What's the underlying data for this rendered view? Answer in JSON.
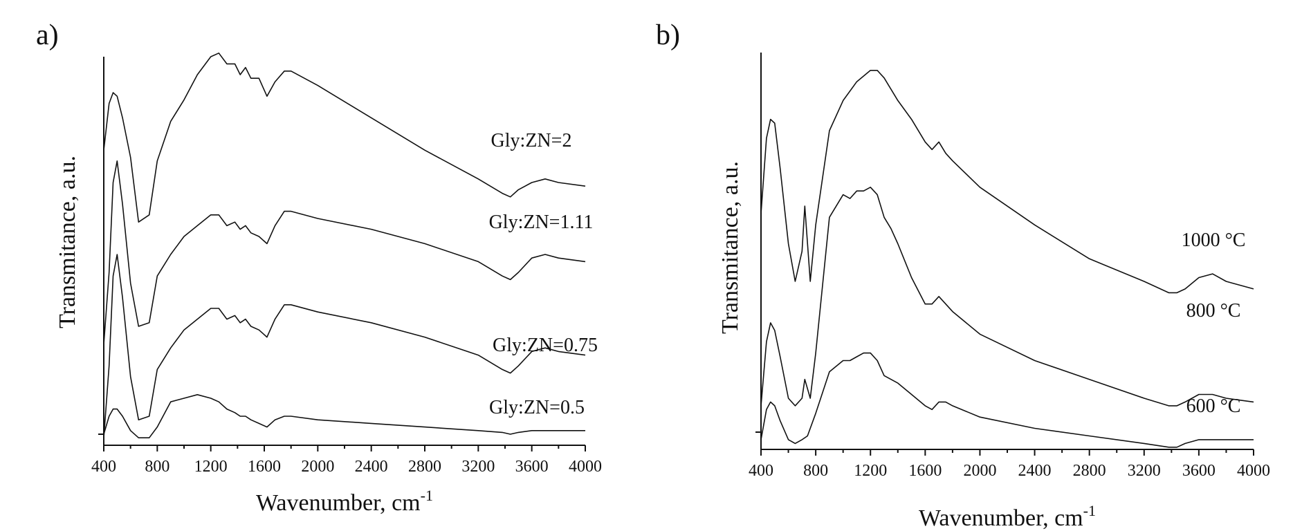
{
  "chart_data": [
    {
      "type": "line",
      "panel": "a)",
      "xlabel": "Wavenumber, cm",
      "xlabel_sup": "-1",
      "ylabel": "Transmitance, a.u.",
      "xlim": [
        400,
        4000
      ],
      "xticks": [
        400,
        800,
        1200,
        1600,
        2000,
        2400,
        2800,
        3200,
        3600,
        4000
      ],
      "y_ticks_labeled": false,
      "series": [
        {
          "name": "Gly:ZN=2",
          "offset": 0.74,
          "x": [
            400,
            440,
            470,
            500,
            540,
            600,
            660,
            740,
            800,
            900,
            1000,
            1100,
            1200,
            1260,
            1320,
            1380,
            1420,
            1460,
            1500,
            1560,
            1620,
            1680,
            1750,
            1800,
            2000,
            2400,
            2800,
            3200,
            3380,
            3440,
            3500,
            3600,
            3700,
            3800,
            4000
          ],
          "y": [
            0.05,
            0.18,
            0.21,
            0.2,
            0.14,
            0.03,
            -0.15,
            -0.13,
            0.02,
            0.13,
            0.19,
            0.26,
            0.31,
            0.32,
            0.29,
            0.29,
            0.26,
            0.28,
            0.25,
            0.25,
            0.2,
            0.24,
            0.27,
            0.27,
            0.23,
            0.14,
            0.05,
            -0.03,
            -0.07,
            -0.08,
            -0.06,
            -0.04,
            -0.03,
            -0.04,
            -0.05
          ]
        },
        {
          "name": "Gly:ZN=1.11",
          "offset": 0.5,
          "x": [
            400,
            440,
            470,
            500,
            540,
            600,
            660,
            740,
            800,
            900,
            1000,
            1100,
            1200,
            1260,
            1320,
            1380,
            1420,
            1460,
            1500,
            1560,
            1620,
            1680,
            1750,
            1800,
            2000,
            2400,
            2800,
            3200,
            3380,
            3440,
            3500,
            3600,
            3700,
            3800,
            4000
          ],
          "y": [
            -0.25,
            -0.05,
            0.2,
            0.26,
            0.14,
            -0.08,
            -0.2,
            -0.19,
            -0.06,
            0.0,
            0.05,
            0.08,
            0.11,
            0.11,
            0.08,
            0.09,
            0.07,
            0.08,
            0.06,
            0.05,
            0.03,
            0.08,
            0.12,
            0.12,
            0.1,
            0.07,
            0.03,
            -0.02,
            -0.06,
            -0.07,
            -0.05,
            -0.01,
            0.0,
            -0.01,
            -0.02
          ]
        },
        {
          "name": "Gly:ZN=0.75",
          "offset": 0.24,
          "x": [
            400,
            440,
            470,
            500,
            540,
            600,
            660,
            740,
            800,
            900,
            1000,
            1100,
            1200,
            1260,
            1320,
            1380,
            1420,
            1460,
            1500,
            1560,
            1620,
            1680,
            1750,
            1800,
            2000,
            2400,
            2800,
            3200,
            3380,
            3440,
            3500,
            3600,
            3700,
            3800,
            4000
          ],
          "y": [
            -0.25,
            -0.05,
            0.2,
            0.26,
            0.14,
            -0.08,
            -0.2,
            -0.19,
            -0.06,
            0.0,
            0.05,
            0.08,
            0.11,
            0.11,
            0.08,
            0.09,
            0.07,
            0.08,
            0.06,
            0.05,
            0.03,
            0.08,
            0.12,
            0.12,
            0.1,
            0.07,
            0.03,
            -0.02,
            -0.06,
            -0.07,
            -0.05,
            -0.01,
            0.0,
            -0.01,
            -0.02
          ]
        },
        {
          "name": "Gly:ZN=0.5",
          "offset": 0.0,
          "x": [
            400,
            440,
            470,
            500,
            540,
            600,
            660,
            740,
            800,
            900,
            1000,
            1100,
            1200,
            1260,
            1320,
            1380,
            1420,
            1460,
            1500,
            1560,
            1620,
            1680,
            1750,
            1800,
            2000,
            2400,
            2800,
            3200,
            3380,
            3440,
            3500,
            3600,
            3700,
            3800,
            4000
          ],
          "y": [
            0.0,
            0.05,
            0.07,
            0.07,
            0.05,
            0.01,
            -0.01,
            -0.01,
            0.02,
            0.09,
            0.1,
            0.11,
            0.1,
            0.09,
            0.07,
            0.06,
            0.05,
            0.05,
            0.04,
            0.03,
            0.02,
            0.04,
            0.05,
            0.05,
            0.04,
            0.03,
            0.02,
            0.01,
            0.005,
            0.0,
            0.005,
            0.01,
            0.01,
            0.01,
            0.01
          ]
        }
      ]
    },
    {
      "type": "line",
      "panel": "b)",
      "xlabel": "Wavenumber, cm",
      "xlabel_sup": "-1",
      "ylabel": "Transmitance, a.u.",
      "xlim": [
        400,
        4000
      ],
      "xticks": [
        400,
        800,
        1200,
        1600,
        2000,
        2400,
        2800,
        3200,
        3600,
        4000
      ],
      "y_ticks_labeled": false,
      "series": [
        {
          "name": "1000 °C",
          "offset": 0.5,
          "x": [
            400,
            440,
            470,
            500,
            540,
            600,
            650,
            700,
            720,
            760,
            800,
            900,
            1000,
            1100,
            1200,
            1250,
            1300,
            1350,
            1400,
            1500,
            1600,
            1650,
            1700,
            1750,
            1800,
            2000,
            2400,
            2800,
            3200,
            3380,
            3440,
            3500,
            3600,
            3700,
            3800,
            4000
          ],
          "y": [
            0.08,
            0.28,
            0.33,
            0.32,
            0.2,
            0.0,
            -0.1,
            -0.02,
            0.1,
            -0.1,
            0.05,
            0.3,
            0.38,
            0.43,
            0.46,
            0.46,
            0.44,
            0.41,
            0.38,
            0.33,
            0.27,
            0.25,
            0.27,
            0.24,
            0.22,
            0.15,
            0.05,
            -0.04,
            -0.1,
            -0.13,
            -0.13,
            -0.12,
            -0.09,
            -0.08,
            -0.1,
            -0.12
          ]
        },
        {
          "name": "800 °C",
          "offset": 0.19,
          "x": [
            400,
            440,
            470,
            500,
            540,
            600,
            650,
            700,
            720,
            760,
            800,
            900,
            1000,
            1050,
            1100,
            1150,
            1200,
            1250,
            1300,
            1350,
            1400,
            1500,
            1600,
            1650,
            1700,
            1750,
            1800,
            2000,
            2400,
            2800,
            3200,
            3380,
            3440,
            3500,
            3600,
            3700,
            3800,
            4000
          ],
          "y": [
            -0.12,
            0.05,
            0.1,
            0.08,
            0.01,
            -0.1,
            -0.12,
            -0.1,
            -0.05,
            -0.1,
            0.02,
            0.38,
            0.44,
            0.43,
            0.45,
            0.45,
            0.46,
            0.44,
            0.38,
            0.35,
            0.31,
            0.22,
            0.15,
            0.15,
            0.17,
            0.15,
            0.13,
            0.07,
            0.0,
            -0.05,
            -0.1,
            -0.12,
            -0.12,
            -0.11,
            -0.09,
            -0.09,
            -0.1,
            -0.11
          ]
        },
        {
          "name": "600 °C",
          "offset": 0.0,
          "x": [
            400,
            440,
            470,
            500,
            540,
            600,
            650,
            700,
            740,
            800,
            900,
            1000,
            1050,
            1100,
            1150,
            1200,
            1250,
            1300,
            1350,
            1400,
            1500,
            1600,
            1650,
            1700,
            1750,
            1800,
            2000,
            2400,
            2800,
            3200,
            3380,
            3440,
            3500,
            3600,
            3700,
            3800,
            4000
          ],
          "y": [
            -0.02,
            0.06,
            0.08,
            0.07,
            0.03,
            -0.02,
            -0.03,
            -0.02,
            -0.01,
            0.05,
            0.16,
            0.19,
            0.19,
            0.2,
            0.21,
            0.21,
            0.19,
            0.15,
            0.14,
            0.13,
            0.1,
            0.07,
            0.06,
            0.08,
            0.08,
            0.07,
            0.04,
            0.01,
            -0.01,
            -0.03,
            -0.04,
            -0.04,
            -0.03,
            -0.02,
            -0.02,
            -0.02,
            -0.02
          ]
        }
      ]
    }
  ]
}
